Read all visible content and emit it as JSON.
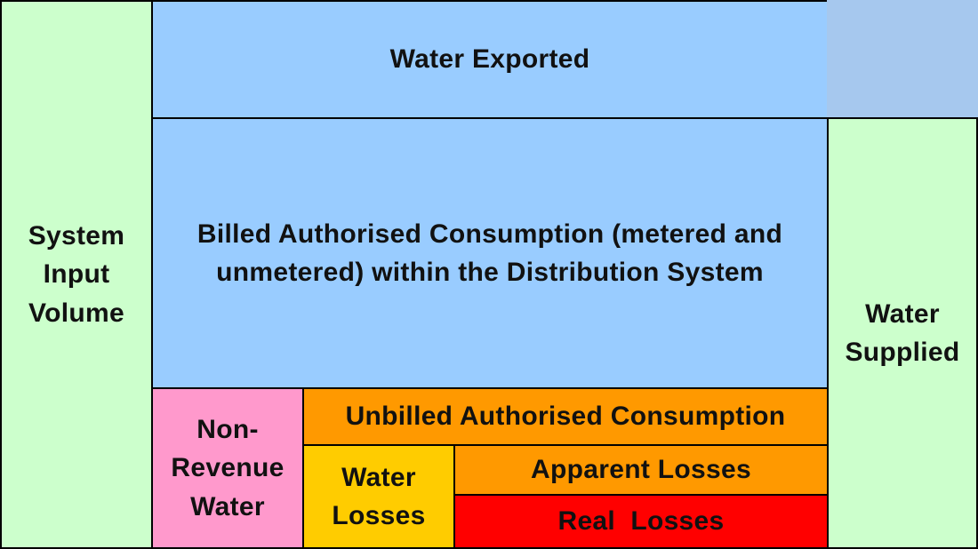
{
  "colors": {
    "system_input": "#ccffcc",
    "water_exported": "#99ccff",
    "water_exported_side": "#a6c8ee",
    "billed": "#99ccff",
    "water_supplied": "#ccffcc",
    "non_revenue": "#ff99cc",
    "unbilled": "#ff9900",
    "water_losses": "#ffcc00",
    "apparent": "#ff9900",
    "real": "#ff0000",
    "border": "#000000"
  },
  "boxes": {
    "system_input_volume": [
      "System",
      "Input",
      "Volume"
    ],
    "water_exported": "Water Exported",
    "billed_authorised": [
      "Billed Authorised Consumption (metered and",
      "unmetered) within the Distribution System"
    ],
    "water_supplied": [
      "Water",
      "Supplied"
    ],
    "non_revenue_water": [
      "Non-",
      "Revenue",
      "Water"
    ],
    "unbilled_authorised": "Unbilled Authorised Consumption",
    "water_losses": [
      "Water",
      "Losses"
    ],
    "apparent_losses": "Apparent Losses",
    "real_losses": "Real  Losses"
  }
}
